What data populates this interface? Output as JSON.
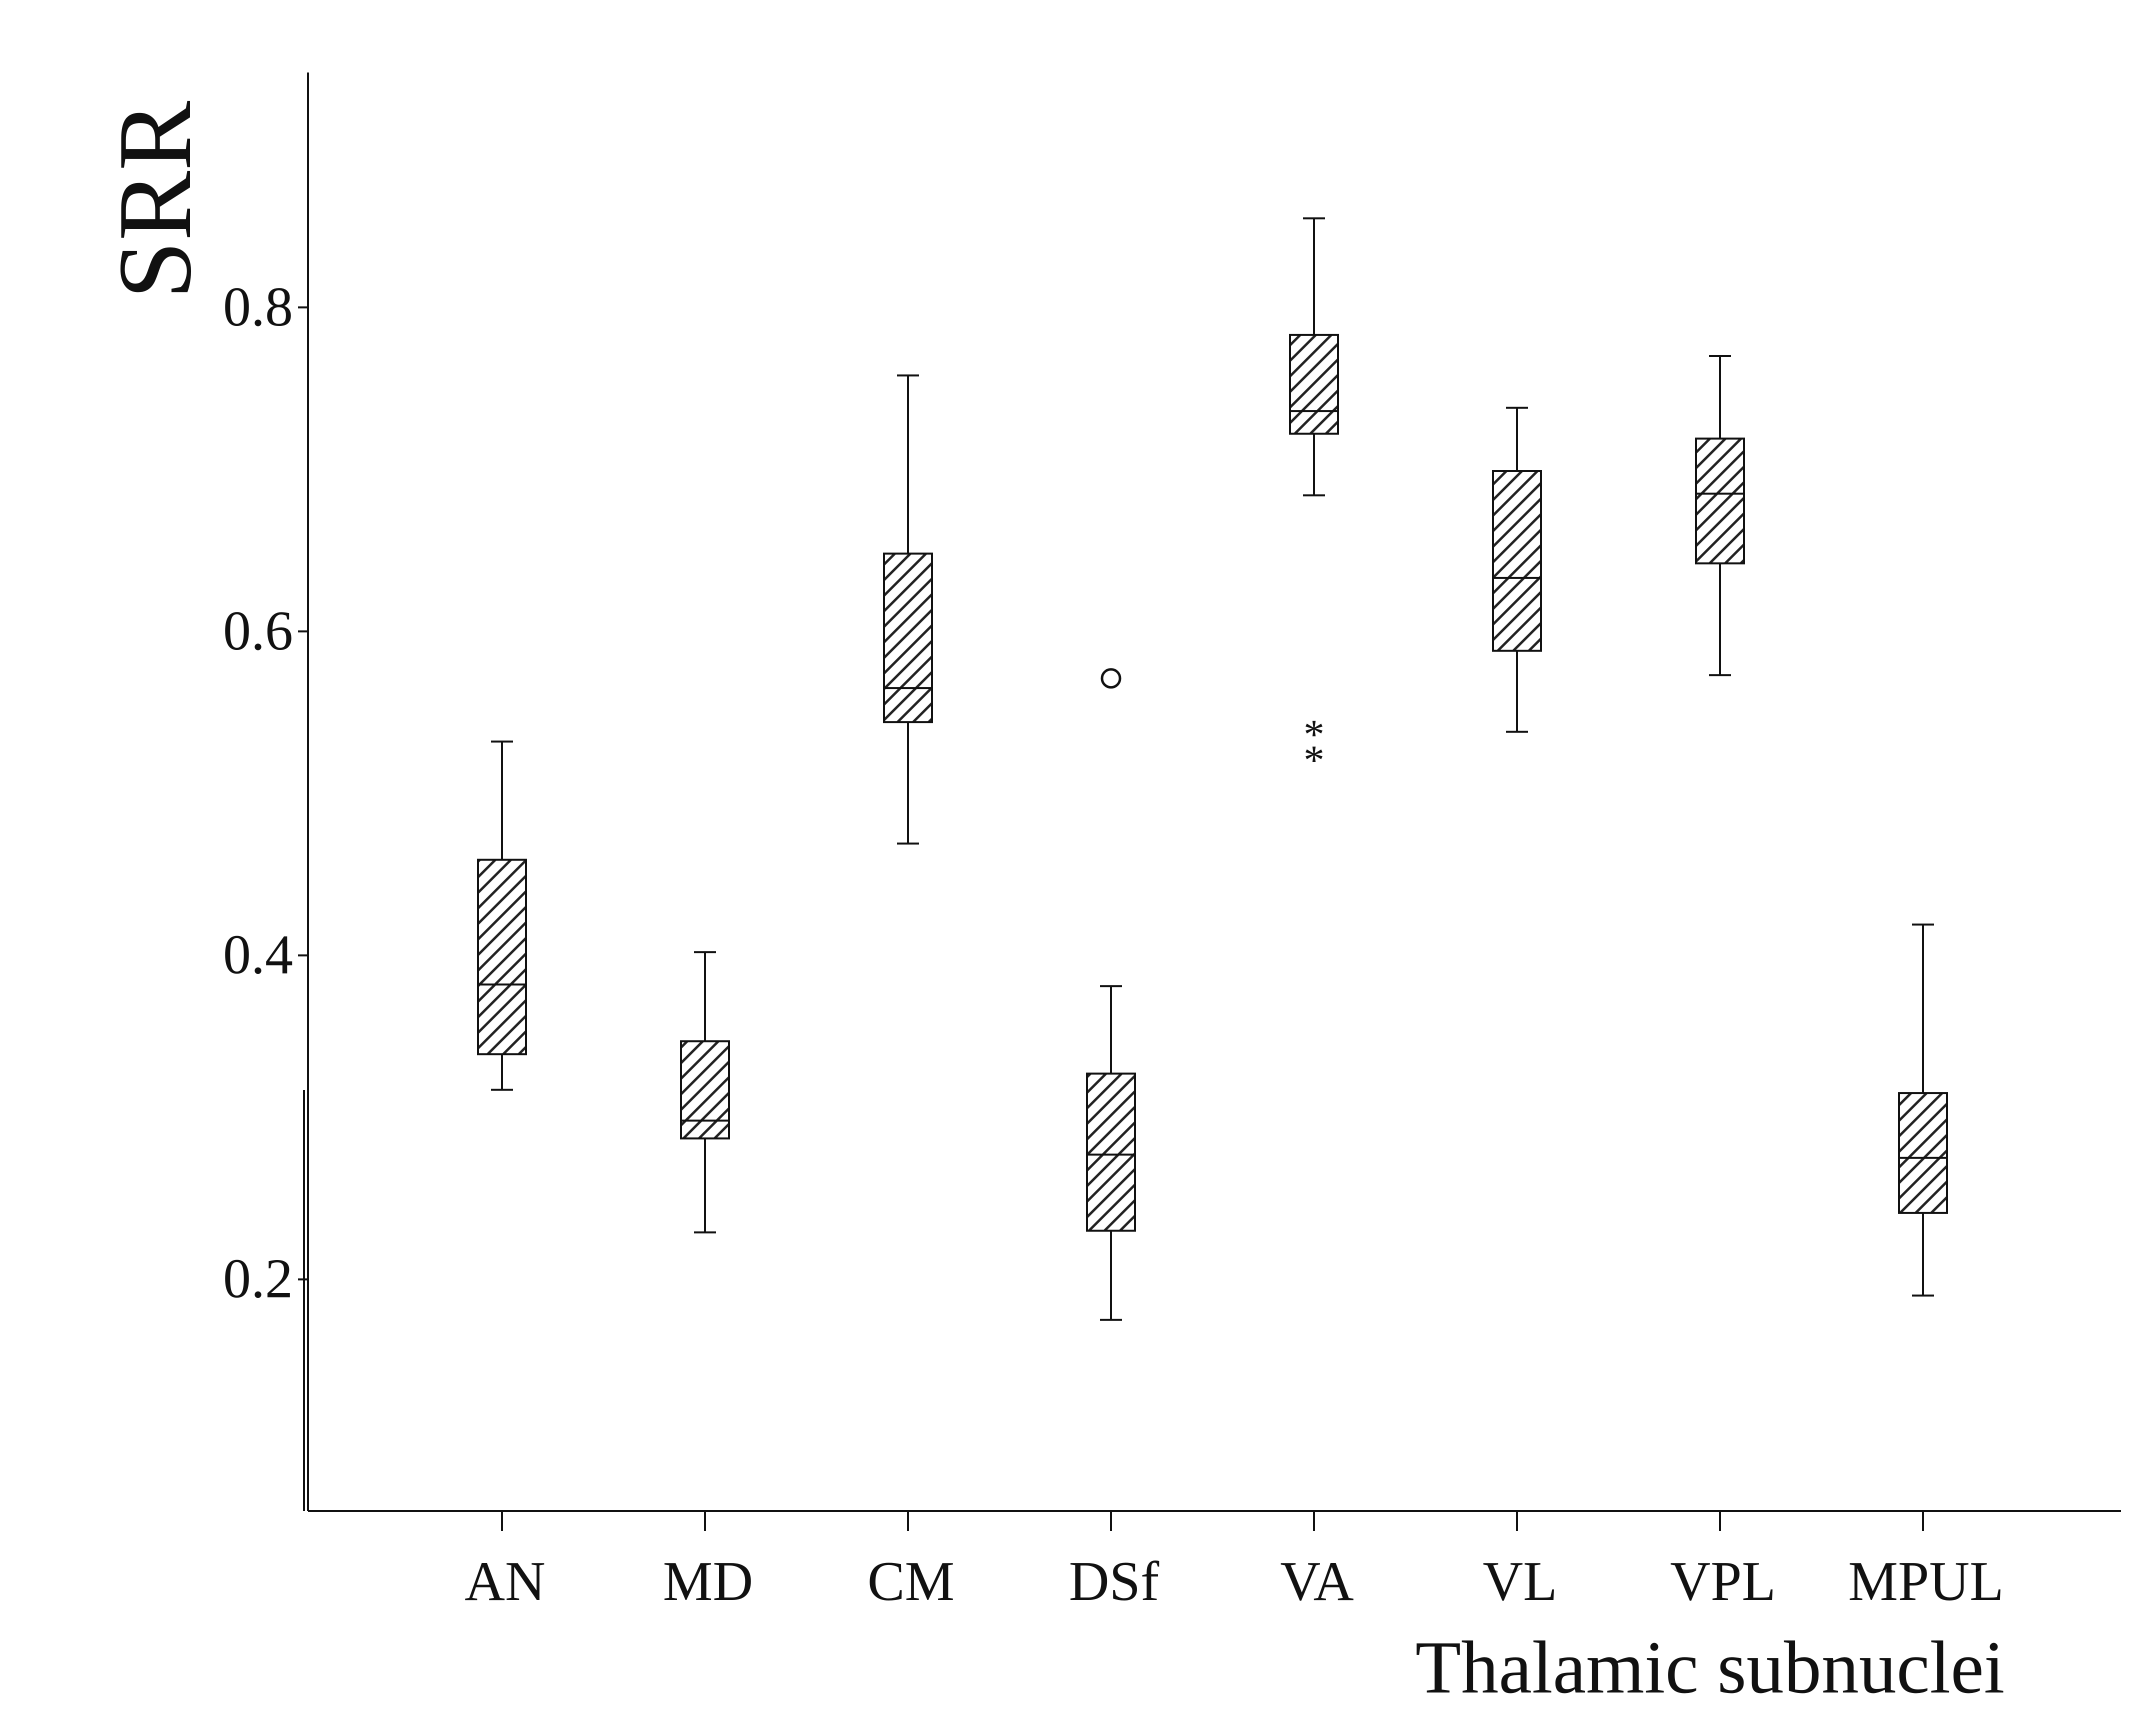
{
  "chart_data": {
    "type": "box",
    "title": "",
    "xlabel": "Thalamic subnuclei",
    "ylabel": "SRR",
    "ylim": [
      0.057,
      0.945
    ],
    "y_ticks": [
      {
        "value": 0.2,
        "label": "0.2"
      },
      {
        "value": 0.4,
        "label": "0.4"
      },
      {
        "value": 0.6,
        "label": "0.6"
      },
      {
        "value": 0.8,
        "label": "0.8"
      }
    ],
    "grid": false,
    "legend": "none",
    "box_fill": "hatched",
    "categories": [
      "AN",
      "MD",
      "CM",
      "DSf",
      "VA",
      "VL",
      "VPL",
      "MPUL"
    ],
    "boxes": [
      {
        "category": "AN",
        "whisker_low": 0.317,
        "q1": 0.339,
        "median": 0.382,
        "q3": 0.459,
        "whisker_high": 0.532,
        "outliers": [],
        "extremes": []
      },
      {
        "category": "MD",
        "whisker_low": 0.229,
        "q1": 0.287,
        "median": 0.298,
        "q3": 0.347,
        "whisker_high": 0.402,
        "outliers": [],
        "extremes": []
      },
      {
        "category": "CM",
        "whisker_low": 0.469,
        "q1": 0.544,
        "median": 0.565,
        "q3": 0.648,
        "whisker_high": 0.758,
        "outliers": [],
        "extremes": []
      },
      {
        "category": "DSf",
        "whisker_low": 0.175,
        "q1": 0.23,
        "median": 0.277,
        "q3": 0.327,
        "whisker_high": 0.381,
        "outliers": [
          0.571
        ],
        "extremes": []
      },
      {
        "category": "VA",
        "whisker_low": 0.684,
        "q1": 0.722,
        "median": 0.736,
        "q3": 0.783,
        "whisker_high": 0.855,
        "outliers": [],
        "extremes": [
          0.539,
          0.523
        ]
      },
      {
        "category": "VL",
        "whisker_low": 0.538,
        "q1": 0.588,
        "median": 0.633,
        "q3": 0.699,
        "whisker_high": 0.738,
        "outliers": [],
        "extremes": []
      },
      {
        "category": "VPL",
        "whisker_low": 0.573,
        "q1": 0.642,
        "median": 0.685,
        "q3": 0.719,
        "whisker_high": 0.77,
        "outliers": [],
        "extremes": []
      },
      {
        "category": "MPUL",
        "whisker_low": 0.19,
        "q1": 0.241,
        "median": 0.275,
        "q3": 0.315,
        "whisker_high": 0.419,
        "outliers": [],
        "extremes": []
      }
    ]
  }
}
